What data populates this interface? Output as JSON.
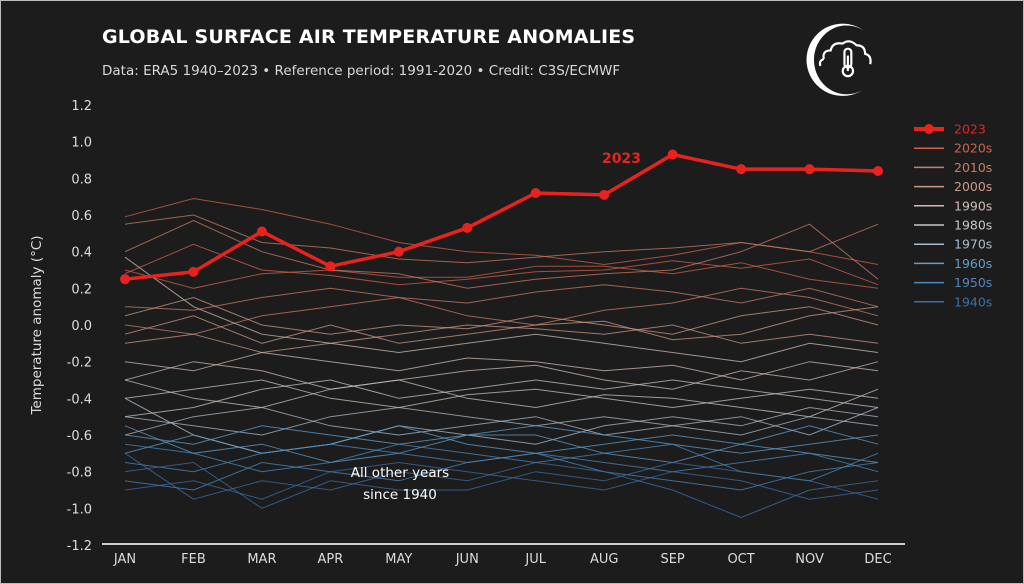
{
  "header": {
    "title": "GLOBAL SURFACE AIR TEMPERATURE ANOMALIES",
    "subtitle": "Data: ERA5 1940–2023 • Reference period: 1991-2020 • Credit: C3S/ECMWF",
    "logo_icon": "cloud-thermometer-crescent-icon"
  },
  "chart_data": {
    "type": "line",
    "title": "GLOBAL SURFACE AIR TEMPERATURE ANOMALIES",
    "xlabel": "",
    "ylabel": "Temperature anomaly (°C)",
    "ylim": [
      -1.2,
      1.2
    ],
    "yticks": [
      "1.2",
      "1.0",
      "0.8",
      "0.6",
      "0.4",
      "0.2",
      "0.0",
      "-0.2",
      "-0.4",
      "-0.6",
      "-0.8",
      "-1.0",
      "-1.2"
    ],
    "categories": [
      "JAN",
      "FEB",
      "MAR",
      "APR",
      "MAY",
      "JUN",
      "JUL",
      "AUG",
      "SEP",
      "OCT",
      "NOV",
      "DEC"
    ],
    "legend_position": "right",
    "highlight": {
      "name": "2023",
      "color": "#e8231f",
      "values": [
        0.25,
        0.29,
        0.51,
        0.32,
        0.4,
        0.53,
        0.72,
        0.71,
        0.93,
        0.85,
        0.85,
        0.84
      ]
    },
    "annotations": {
      "highlight_label": "2023",
      "other_years_line1": "All other years",
      "other_years_line2": "since 1940"
    },
    "legend": [
      {
        "label": "2023",
        "color": "#e8231f"
      },
      {
        "label": "2020s",
        "color": "#d0624b"
      },
      {
        "label": "2010s",
        "color": "#cc7c63"
      },
      {
        "label": "2000s",
        "color": "#cc9a84"
      },
      {
        "label": "1990s",
        "color": "#d2bcb2"
      },
      {
        "label": "1980s",
        "color": "#c6c6c6"
      },
      {
        "label": "1970s",
        "color": "#a9bccb"
      },
      {
        "label": "1960s",
        "color": "#5f9dcc"
      },
      {
        "label": "1950s",
        "color": "#4c88bc"
      },
      {
        "label": "1940s",
        "color": "#3d6ea6"
      }
    ],
    "series": [
      {
        "decade": "2020s",
        "values": [
          0.59,
          0.69,
          0.63,
          0.55,
          0.45,
          0.4,
          0.38,
          0.33,
          0.38,
          0.45,
          0.4,
          0.33
        ]
      },
      {
        "decade": "2020s",
        "values": [
          0.3,
          0.2,
          0.28,
          0.3,
          0.26,
          0.26,
          0.32,
          0.32,
          0.28,
          0.34,
          0.25,
          0.2
        ]
      },
      {
        "decade": "2020s",
        "values": [
          0.28,
          0.44,
          0.3,
          0.27,
          0.22,
          0.25,
          0.29,
          0.3,
          0.35,
          0.31,
          0.36,
          0.22
        ]
      },
      {
        "decade": "2010s",
        "values": [
          0.55,
          0.6,
          0.45,
          0.42,
          0.36,
          0.34,
          0.37,
          0.4,
          0.42,
          0.45,
          0.4,
          0.55
        ]
      },
      {
        "decade": "2010s",
        "values": [
          0.4,
          0.57,
          0.4,
          0.3,
          0.28,
          0.2,
          0.25,
          0.28,
          0.3,
          0.4,
          0.55,
          0.25
        ]
      },
      {
        "decade": "2010s",
        "values": [
          0.1,
          0.08,
          0.15,
          0.2,
          0.15,
          0.12,
          0.18,
          0.22,
          0.18,
          0.12,
          0.2,
          0.1
        ]
      },
      {
        "decade": "2010s",
        "values": [
          0.0,
          -0.05,
          0.05,
          0.1,
          0.15,
          0.05,
          0.0,
          0.08,
          0.12,
          0.2,
          0.15,
          0.05
        ]
      },
      {
        "decade": "2000s",
        "values": [
          0.05,
          0.15,
          0.0,
          -0.05,
          0.0,
          -0.02,
          0.05,
          0.0,
          -0.05,
          0.05,
          0.1,
          0.0
        ]
      },
      {
        "decade": "2000s",
        "values": [
          -0.1,
          -0.05,
          -0.15,
          -0.1,
          -0.05,
          0.0,
          -0.02,
          -0.05,
          0.0,
          -0.1,
          -0.05,
          -0.1
        ]
      },
      {
        "decade": "2000s",
        "values": [
          -0.05,
          0.05,
          -0.1,
          0.0,
          -0.1,
          -0.05,
          0.0,
          0.02,
          -0.08,
          -0.05,
          0.05,
          0.1
        ]
      },
      {
        "decade": "1990s",
        "values": [
          -0.2,
          -0.25,
          -0.15,
          -0.2,
          -0.25,
          -0.18,
          -0.2,
          -0.25,
          -0.22,
          -0.3,
          -0.2,
          -0.25
        ]
      },
      {
        "decade": "1990s",
        "values": [
          -0.3,
          -0.2,
          -0.25,
          -0.35,
          -0.3,
          -0.25,
          -0.22,
          -0.3,
          -0.35,
          -0.25,
          -0.3,
          -0.2
        ]
      },
      {
        "decade": "1990s",
        "values": [
          0.37,
          0.1,
          -0.05,
          -0.1,
          -0.15,
          -0.1,
          -0.05,
          -0.1,
          -0.15,
          -0.2,
          -0.1,
          -0.15
        ]
      },
      {
        "decade": "1980s",
        "values": [
          -0.4,
          -0.35,
          -0.3,
          -0.4,
          -0.45,
          -0.38,
          -0.35,
          -0.4,
          -0.45,
          -0.4,
          -0.35,
          -0.4
        ]
      },
      {
        "decade": "1980s",
        "values": [
          -0.3,
          -0.4,
          -0.45,
          -0.35,
          -0.3,
          -0.4,
          -0.45,
          -0.38,
          -0.4,
          -0.45,
          -0.5,
          -0.35
        ]
      },
      {
        "decade": "1980s",
        "values": [
          -0.5,
          -0.45,
          -0.35,
          -0.3,
          -0.4,
          -0.35,
          -0.3,
          -0.35,
          -0.3,
          -0.35,
          -0.4,
          -0.45
        ]
      },
      {
        "decade": "1970s",
        "values": [
          -0.5,
          -0.55,
          -0.6,
          -0.5,
          -0.45,
          -0.5,
          -0.55,
          -0.5,
          -0.55,
          -0.6,
          -0.5,
          -0.55
        ]
      },
      {
        "decade": "1970s",
        "values": [
          -0.6,
          -0.5,
          -0.45,
          -0.55,
          -0.6,
          -0.55,
          -0.5,
          -0.6,
          -0.55,
          -0.5,
          -0.6,
          -0.45
        ]
      },
      {
        "decade": "1970s",
        "values": [
          -0.4,
          -0.6,
          -0.7,
          -0.65,
          -0.55,
          -0.6,
          -0.65,
          -0.55,
          -0.5,
          -0.55,
          -0.45,
          -0.5
        ]
      },
      {
        "decade": "1960s",
        "values": [
          -0.6,
          -0.65,
          -0.55,
          -0.6,
          -0.65,
          -0.6,
          -0.55,
          -0.6,
          -0.65,
          -0.7,
          -0.65,
          -0.6
        ]
      },
      {
        "decade": "1960s",
        "values": [
          -0.7,
          -0.6,
          -0.7,
          -0.65,
          -0.55,
          -0.65,
          -0.7,
          -0.65,
          -0.6,
          -0.65,
          -0.7,
          -0.75
        ]
      },
      {
        "decade": "1960s",
        "values": [
          -0.55,
          -0.7,
          -0.65,
          -0.75,
          -0.7,
          -0.6,
          -0.6,
          -0.7,
          -0.75,
          -0.65,
          -0.55,
          -0.65
        ]
      },
      {
        "decade": "1950s",
        "values": [
          -0.75,
          -0.8,
          -0.7,
          -0.65,
          -0.7,
          -0.75,
          -0.7,
          -0.75,
          -0.8,
          -0.75,
          -0.7,
          -0.8
        ]
      },
      {
        "decade": "1950s",
        "values": [
          -0.65,
          -0.7,
          -0.8,
          -0.75,
          -0.65,
          -0.7,
          -0.75,
          -0.7,
          -0.65,
          -0.8,
          -0.85,
          -0.7
        ]
      },
      {
        "decade": "1950s",
        "values": [
          -0.85,
          -0.9,
          -0.75,
          -0.8,
          -0.85,
          -0.75,
          -0.7,
          -0.8,
          -0.85,
          -0.9,
          -0.8,
          -0.75
        ]
      },
      {
        "decade": "1940s",
        "values": [
          -0.9,
          -0.85,
          -0.95,
          -0.8,
          -0.75,
          -0.8,
          -0.85,
          -0.9,
          -0.8,
          -0.85,
          -0.95,
          -0.9
        ]
      },
      {
        "decade": "1940s",
        "values": [
          -0.7,
          -0.95,
          -0.85,
          -0.9,
          -0.8,
          -0.85,
          -0.75,
          -0.8,
          -0.9,
          -1.05,
          -0.9,
          -0.85
        ]
      },
      {
        "decade": "1940s",
        "values": [
          -0.8,
          -0.75,
          -1.0,
          -0.85,
          -0.9,
          -0.9,
          -0.8,
          -0.85,
          -0.75,
          -0.8,
          -0.85,
          -0.95
        ]
      }
    ]
  }
}
